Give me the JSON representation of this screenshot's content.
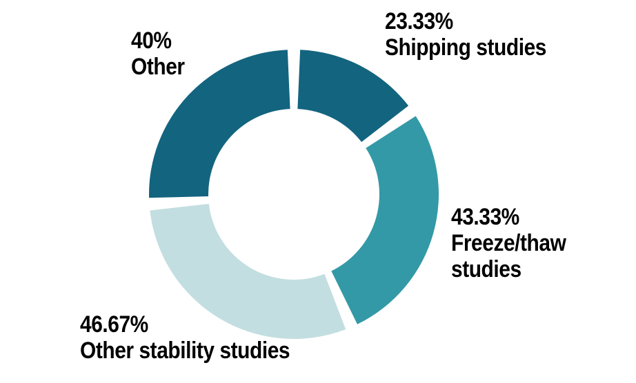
{
  "chart_data": {
    "type": "pie",
    "style": "donut",
    "slices": [
      {
        "percent": "23.33%",
        "name": "Shipping studies",
        "value": 23.33,
        "color": "#13647f"
      },
      {
        "percent": "43.33%",
        "name_lines": [
          "Freeze/thaw",
          "studies"
        ],
        "value": 43.33,
        "color": "#3399a6"
      },
      {
        "percent": "46.67%",
        "name": "Other stability studies",
        "value": 46.67,
        "color": "#c3dee0"
      },
      {
        "percent": "40%",
        "name": "Other",
        "value": 40,
        "color": "#13647f"
      }
    ]
  }
}
